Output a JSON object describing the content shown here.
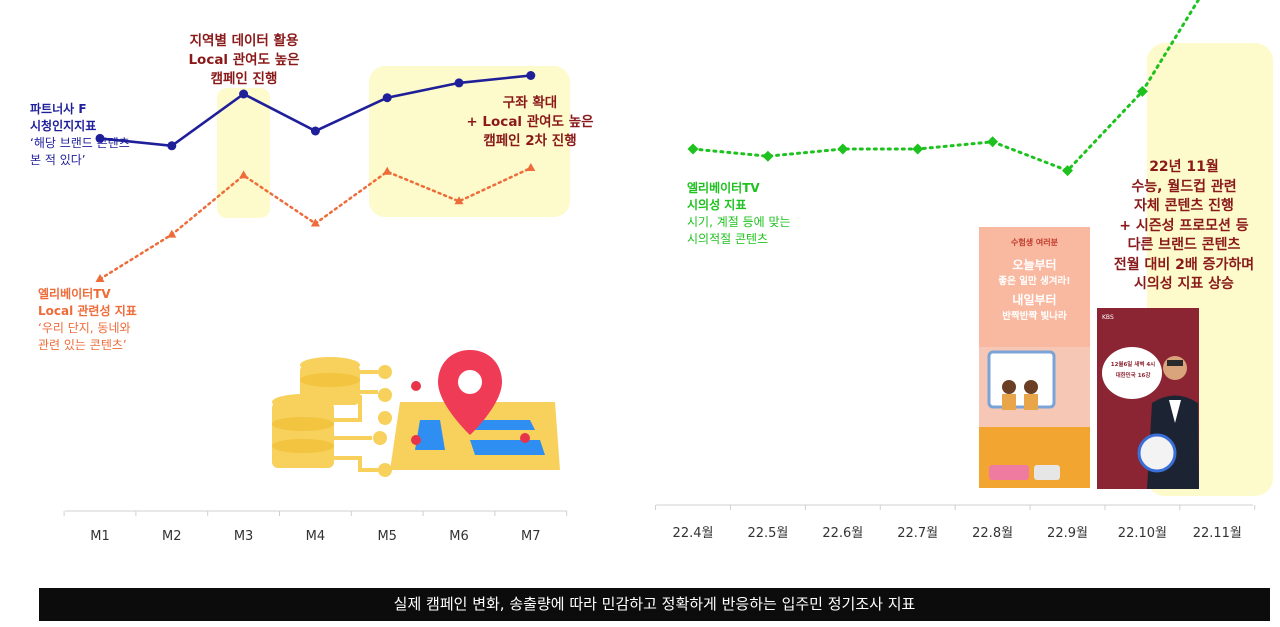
{
  "left_chart": {
    "annotations": {
      "m3": [
        "지역별 데이터 활용",
        "Local 관여도 높은",
        "캠페인 진행"
      ],
      "m5": [
        "구좌 확대",
        "+ Local 관여도 높은",
        "캠페인 2차 진행"
      ]
    },
    "legend_partner": {
      "title1": "파트너사 F",
      "title2": "시청인지지표",
      "desc1": "‘해당 브랜드 콘텐츠",
      "desc2": "본 적 있다’"
    },
    "legend_local": {
      "title1": "엘리베이터TV",
      "title2": "Local 관련성 지표",
      "desc1": "‘우리 단지, 동네와",
      "desc2": "관련 있는 콘텐츠’"
    }
  },
  "right_chart": {
    "legend": {
      "title1": "엘리베이터TV",
      "title2": "시의성 지표",
      "desc1": "시기, 계절 등에 맞는",
      "desc2": "시의적절 콘텐츠"
    },
    "annotation": [
      "22년 11월",
      "수능, 월드컵 관련",
      "자체 콘텐츠 진행",
      "+ 시즌성 프로모션 등",
      "다른 브랜드 콘텐츠",
      "전월 대비 2배 증가하며",
      "시의성 지표 상승"
    ]
  },
  "poster1": {
    "line1": "수험생 여러분",
    "line2": "오늘부터",
    "line3": "좋은 일만 생겨라!",
    "line4": "내일부터",
    "line5": "반짝반짝 빛나라"
  },
  "poster2": {
    "line1": "12월6일 새벽 4시",
    "line2": "대한민국 16강",
    "line3": "KBS"
  },
  "footer": {
    "text": "실제 캠페인 변화, 송출량에 따라 민감하고 정확하게 반응하는 입주민 정기조사 지표"
  },
  "chart_data": [
    {
      "type": "line",
      "categories": [
        "M1",
        "M2",
        "M3",
        "M4",
        "M5",
        "M6",
        "M7"
      ],
      "series": [
        {
          "name": "파트너사 F 시청인지지표",
          "color": "#1f1f9a",
          "values": [
            58,
            56,
            70,
            60,
            69,
            73,
            75
          ]
        },
        {
          "name": "엘리베이터TV Local 관련성 지표",
          "color": "#ee6c3a",
          "values": [
            20,
            32,
            48,
            35,
            49,
            41,
            50
          ]
        }
      ],
      "highlights": [
        "M3",
        "M5-M7"
      ],
      "ylim": [
        0,
        100
      ]
    },
    {
      "type": "line",
      "categories": [
        "22.4월",
        "22.5월",
        "22.6월",
        "22.7월",
        "22.8월",
        "22.9월",
        "22.10월",
        "22.11월"
      ],
      "series": [
        {
          "name": "엘리베이터TV 시의성 지표",
          "color": "#1ec21e",
          "values": [
            30,
            29,
            30,
            30,
            31,
            27,
            38,
            55
          ]
        }
      ],
      "highlights": [
        "22.11월"
      ],
      "ylim": [
        0,
        60
      ]
    }
  ]
}
